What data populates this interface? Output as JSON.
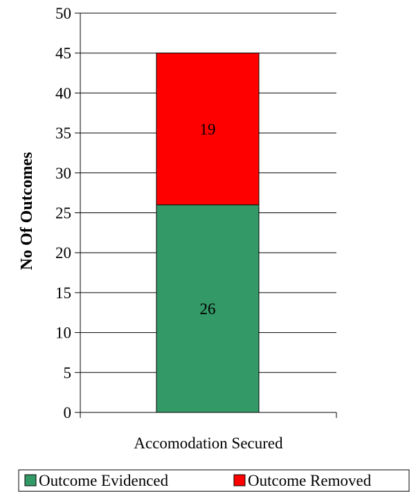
{
  "chart_data": {
    "type": "bar",
    "stacked": true,
    "categories": [
      "Accomodation Secured"
    ],
    "series": [
      {
        "name": "Outcome Evidenced",
        "values": [
          26
        ],
        "color": "#339966"
      },
      {
        "name": "Outcome Removed",
        "values": [
          19
        ],
        "color": "#ff0000"
      }
    ],
    "ylabel": "No Of Outcomes",
    "ylim": [
      0,
      50
    ],
    "yticks": [
      0,
      5,
      10,
      15,
      20,
      25,
      30,
      35,
      40,
      45,
      50
    ],
    "grid": true,
    "legend_position": "bottom"
  }
}
